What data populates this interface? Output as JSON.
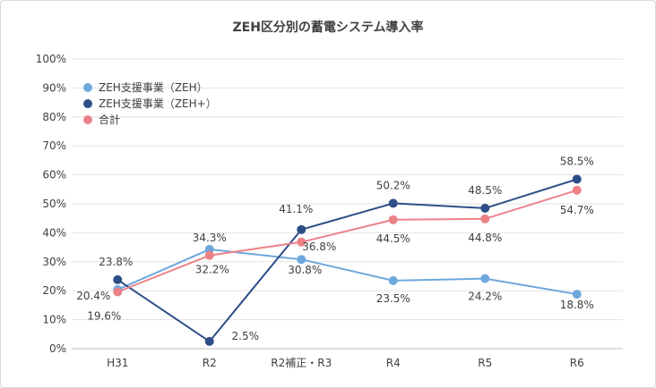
{
  "chart_data": {
    "type": "line",
    "title": "ZEH区分別の蓄電システム導入率",
    "categories": [
      "H31",
      "R2",
      "R2補正・R3",
      "R4",
      "R5",
      "R6"
    ],
    "ylim": [
      0,
      100
    ],
    "y_ticks": [
      "0%",
      "10%",
      "20%",
      "30%",
      "40%",
      "50%",
      "60%",
      "70%",
      "80%",
      "90%",
      "100%"
    ],
    "grid": true,
    "legend": "top-left",
    "series": [
      {
        "name": "ZEH支援事業（ZEH）",
        "color": "#6fa8dc",
        "values": [
          20.4,
          34.3,
          30.8,
          23.5,
          24.2,
          18.8
        ],
        "labels": [
          "20.4%",
          "34.3%",
          "30.8%",
          "23.5%",
          "24.2%",
          "18.8%"
        ]
      },
      {
        "name": "ZEH支援事業（ZEH+）",
        "color": "#2e4e87",
        "values": [
          23.8,
          2.5,
          41.1,
          50.2,
          48.5,
          58.5
        ],
        "labels": [
          "23.8%",
          "2.5%",
          "41.1%",
          "50.2%",
          "48.5%",
          "58.5%"
        ]
      },
      {
        "name": "合計",
        "color": "#ec8188",
        "values": [
          19.6,
          32.2,
          36.8,
          44.5,
          44.8,
          54.7
        ],
        "labels": [
          "19.6%",
          "32.2%",
          "36.8%",
          "44.5%",
          "44.8%",
          "54.7%"
        ]
      }
    ]
  }
}
